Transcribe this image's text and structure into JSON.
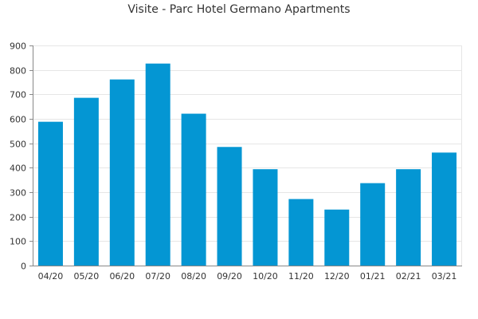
{
  "chart_data": {
    "type": "bar",
    "title": "Visite - Parc Hotel Germano Apartments",
    "xlabel": "",
    "ylabel": "",
    "categories": [
      "04/20",
      "05/20",
      "06/20",
      "07/20",
      "08/20",
      "09/20",
      "10/20",
      "11/20",
      "12/20",
      "01/21",
      "02/21",
      "03/21"
    ],
    "values": [
      588,
      686,
      761,
      826,
      621,
      485,
      394,
      272,
      229,
      337,
      394,
      462
    ],
    "ylim": [
      0,
      900
    ],
    "yticks": [
      0,
      100,
      200,
      300,
      400,
      500,
      600,
      700,
      800,
      900
    ],
    "grid": true,
    "legend": "none",
    "colors": {
      "bar": "#0496d3",
      "grid": "#e6e6e6",
      "axis": "#888888",
      "text": "#333333"
    }
  }
}
